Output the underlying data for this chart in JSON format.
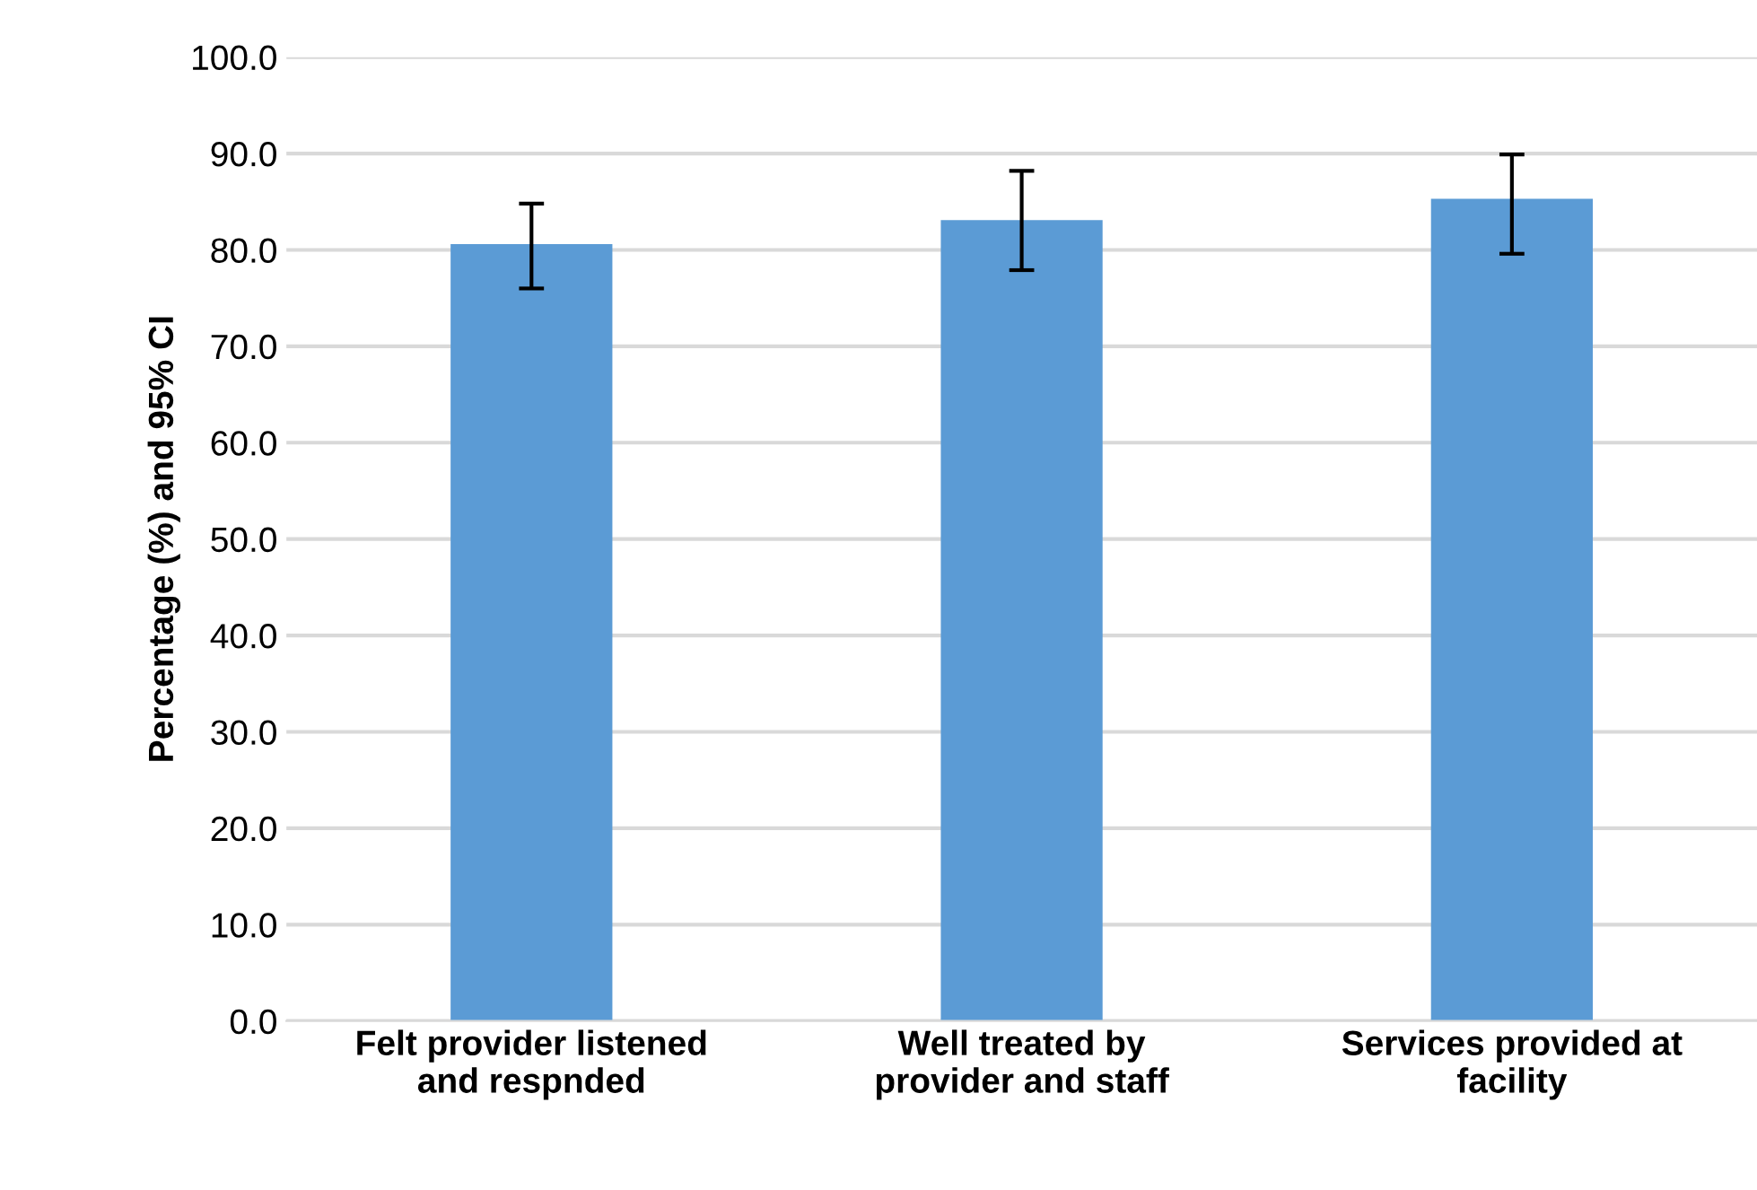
{
  "chart_data": {
    "type": "bar",
    "ylabel": "Percentage (%) and 95% CI",
    "categories": [
      "Felt provider listened\nand respnded",
      "Well treated by\nprovider and staff",
      "Services provided at\nfacility"
    ],
    "values": [
      80.6,
      83.1,
      85.3
    ],
    "errors": [
      [
        76.0,
        84.8
      ],
      [
        77.9,
        88.2
      ],
      [
        79.6,
        89.9
      ]
    ],
    "color": "#5b9bd5",
    "ylim": [
      0,
      100
    ],
    "yticks": [
      {
        "value": 0,
        "label": "0.0"
      },
      {
        "value": 10,
        "label": "10.0"
      },
      {
        "value": 20,
        "label": "20.0"
      },
      {
        "value": 30,
        "label": "30.0"
      },
      {
        "value": 40,
        "label": "40.0"
      },
      {
        "value": 50,
        "label": "50.0"
      },
      {
        "value": 60,
        "label": "60.0"
      },
      {
        "value": 70,
        "label": "70.0"
      },
      {
        "value": 80,
        "label": "80.0"
      },
      {
        "value": 90,
        "label": "90.0"
      },
      {
        "value": 100,
        "label": "100.0"
      }
    ],
    "grid": "y"
  }
}
